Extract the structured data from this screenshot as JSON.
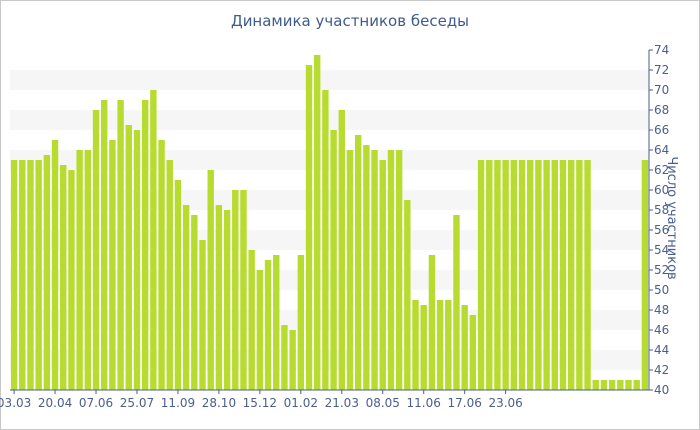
{
  "chart_data": {
    "type": "bar",
    "title": "Динамика участников беседы",
    "xlabel": "",
    "ylabel": "Число участников",
    "ylim": [
      40,
      74
    ],
    "yticks": [
      40,
      42,
      44,
      46,
      48,
      50,
      52,
      54,
      56,
      58,
      60,
      62,
      64,
      66,
      68,
      70,
      72,
      74
    ],
    "y_axis_position": "right",
    "grid": "alternating horizontal bands",
    "bar_color": "#b7db2f",
    "band_color": "#f6f6f6",
    "axis_color": "#4a5f8c",
    "x_tick_labels": [
      {
        "label": "03.03",
        "index": 0
      },
      {
        "label": "20.04",
        "index": 5
      },
      {
        "label": "07.06",
        "index": 10
      },
      {
        "label": "25.07",
        "index": 15
      },
      {
        "label": "11.09",
        "index": 20
      },
      {
        "label": "28.10",
        "index": 25
      },
      {
        "label": "15.12",
        "index": 30
      },
      {
        "label": "01.02",
        "index": 35
      },
      {
        "label": "21.03",
        "index": 40
      },
      {
        "label": "08.05",
        "index": 45
      },
      {
        "label": "11.06",
        "index": 50
      },
      {
        "label": "17.06",
        "index": 55
      },
      {
        "label": "23.06",
        "index": 60
      }
    ],
    "values": [
      63,
      63,
      63,
      63,
      63.5,
      65,
      62.5,
      62,
      64,
      64,
      68,
      69,
      65,
      69,
      66.5,
      66,
      69,
      70,
      65,
      63,
      61,
      58.5,
      57.5,
      55,
      62,
      58.5,
      58,
      60,
      60,
      54,
      52,
      53,
      53.5,
      46.5,
      46,
      53.5,
      72.5,
      73.5,
      70,
      66,
      68,
      64,
      65.5,
      64.5,
      64,
      63,
      64,
      64,
      59,
      49,
      48.5,
      53.5,
      49,
      49,
      57.5,
      48.5,
      47.5,
      63,
      63,
      63,
      63,
      63,
      63,
      63,
      63,
      63,
      63,
      63,
      63,
      63,
      63,
      41,
      41,
      41,
      41,
      41,
      41,
      63
    ]
  }
}
